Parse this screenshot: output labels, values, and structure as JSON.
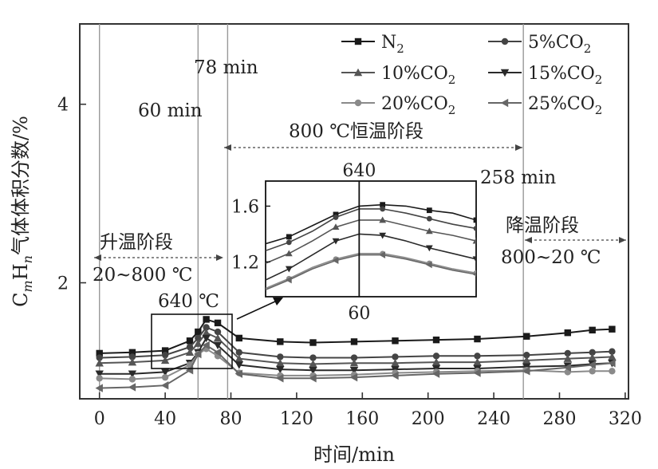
{
  "chart_data": {
    "type": "line",
    "xlabel": "时间/min",
    "ylabel_main": "C",
    "ylabel_sub1": "m",
    "ylabel_mid": "H",
    "ylabel_sub2": "n",
    "ylabel_rest": "气体体积分数/%",
    "xlim": [
      -12,
      322
    ],
    "ylim": [
      0.7,
      4.9
    ],
    "x_ticks": [
      "0",
      "40",
      "80",
      "120",
      "160",
      "200",
      "240",
      "280",
      "320"
    ],
    "y_ticks": [
      "2",
      "4"
    ],
    "x_tick_values": [
      0,
      40,
      80,
      120,
      160,
      200,
      240,
      280,
      320
    ],
    "y_tick_values": [
      2,
      4
    ],
    "vlines": [
      0,
      60,
      78,
      258
    ],
    "legend": [
      {
        "name": "N",
        "sub": "2",
        "color": "#1a1a1a",
        "marker": "square"
      },
      {
        "name": "5%CO",
        "sub": "2",
        "color": "#444444",
        "marker": "circle"
      },
      {
        "name": "10%CO",
        "sub": "2",
        "color": "#555555",
        "marker": "triangle-up"
      },
      {
        "name": "15%CO",
        "sub": "2",
        "color": "#2a2a2a",
        "marker": "triangle-down"
      },
      {
        "name": "20%CO",
        "sub": "2",
        "color": "#8a8a8a",
        "marker": "circle"
      },
      {
        "name": "25%CO",
        "sub": "2",
        "color": "#666666",
        "marker": "triangle-left"
      }
    ],
    "series": [
      {
        "name": "N2",
        "x": [
          0,
          20,
          40,
          55,
          60,
          65,
          72,
          85,
          110,
          130,
          155,
          180,
          205,
          230,
          260,
          285,
          300,
          312
        ],
        "y": [
          1.21,
          1.22,
          1.24,
          1.35,
          1.45,
          1.59,
          1.55,
          1.38,
          1.34,
          1.33,
          1.34,
          1.35,
          1.36,
          1.37,
          1.4,
          1.44,
          1.47,
          1.48
        ]
      },
      {
        "name": "5%CO2",
        "x": [
          0,
          20,
          40,
          55,
          60,
          65,
          72,
          85,
          110,
          130,
          155,
          180,
          205,
          230,
          260,
          285,
          300,
          312
        ],
        "y": [
          1.16,
          1.17,
          1.19,
          1.28,
          1.38,
          1.5,
          1.45,
          1.22,
          1.17,
          1.16,
          1.16,
          1.17,
          1.18,
          1.18,
          1.19,
          1.21,
          1.22,
          1.23
        ]
      },
      {
        "name": "10%CO2",
        "x": [
          0,
          20,
          40,
          55,
          60,
          65,
          72,
          85,
          110,
          130,
          155,
          180,
          205,
          230,
          260,
          285,
          300,
          312
        ],
        "y": [
          1.1,
          1.11,
          1.13,
          1.22,
          1.32,
          1.44,
          1.38,
          1.15,
          1.1,
          1.09,
          1.1,
          1.1,
          1.11,
          1.11,
          1.13,
          1.15,
          1.16,
          1.17
        ]
      },
      {
        "name": "15%CO2",
        "x": [
          0,
          20,
          40,
          55,
          60,
          65,
          72,
          85,
          110,
          130,
          155,
          180,
          205,
          230,
          260,
          285,
          300,
          312
        ],
        "y": [
          0.98,
          0.98,
          1.0,
          1.1,
          1.22,
          1.38,
          1.3,
          1.08,
          1.03,
          1.02,
          1.02,
          1.03,
          1.04,
          1.04,
          1.06,
          1.07,
          1.09,
          1.1
        ]
      },
      {
        "name": "20%CO2",
        "x": [
          0,
          20,
          40,
          55,
          60,
          65,
          72,
          85,
          110,
          130,
          155,
          180,
          205,
          230,
          260,
          285,
          300,
          312
        ],
        "y": [
          0.93,
          0.92,
          0.94,
          1.08,
          1.2,
          1.26,
          1.18,
          0.99,
          0.96,
          0.96,
          0.97,
          0.99,
          1.0,
          1.01,
          1.02,
          1.0,
          1.01,
          1.01
        ]
      },
      {
        "name": "25%CO2",
        "x": [
          0,
          20,
          40,
          55,
          60,
          65,
          72,
          85,
          110,
          130,
          155,
          180,
          205,
          230,
          260,
          285,
          300,
          312
        ],
        "y": [
          0.82,
          0.83,
          0.85,
          1.02,
          1.2,
          1.3,
          1.22,
          0.98,
          0.93,
          0.93,
          0.94,
          0.96,
          0.98,
          0.99,
          1.01,
          1.05,
          1.08,
          1.1
        ]
      }
    ],
    "inset": {
      "yticks": [
        "1.2",
        "1.6"
      ],
      "ytick_values": [
        1.2,
        1.6
      ],
      "ylim": [
        0.95,
        1.78
      ],
      "xlim": [
        44,
        80
      ],
      "marker_x": 60,
      "top_label": "640",
      "bottom_label": "60",
      "series": [
        {
          "x": [
            44,
            48,
            52,
            56,
            60,
            64,
            68,
            72,
            76,
            80
          ],
          "y": [
            1.33,
            1.38,
            1.46,
            1.54,
            1.6,
            1.61,
            1.6,
            1.57,
            1.55,
            1.5
          ]
        },
        {
          "x": [
            44,
            48,
            52,
            56,
            60,
            64,
            68,
            72,
            76,
            80
          ],
          "y": [
            1.28,
            1.34,
            1.42,
            1.52,
            1.58,
            1.58,
            1.55,
            1.51,
            1.47,
            1.44
          ]
        },
        {
          "x": [
            44,
            48,
            52,
            56,
            60,
            64,
            68,
            72,
            76,
            80
          ],
          "y": [
            1.19,
            1.26,
            1.35,
            1.45,
            1.5,
            1.5,
            1.46,
            1.42,
            1.39,
            1.35
          ]
        },
        {
          "x": [
            44,
            48,
            52,
            56,
            60,
            64,
            68,
            72,
            76,
            80
          ],
          "y": [
            1.07,
            1.15,
            1.25,
            1.35,
            1.4,
            1.39,
            1.35,
            1.3,
            1.26,
            1.22
          ]
        },
        {
          "x": [
            44,
            48,
            52,
            56,
            60,
            64,
            68,
            72,
            76,
            80
          ],
          "y": [
            1.01,
            1.08,
            1.16,
            1.22,
            1.26,
            1.26,
            1.23,
            1.19,
            1.15,
            1.12
          ]
        },
        {
          "x": [
            44,
            48,
            52,
            56,
            60,
            64,
            68,
            72,
            76,
            80
          ],
          "y": [
            1.0,
            1.07,
            1.15,
            1.21,
            1.25,
            1.25,
            1.22,
            1.18,
            1.14,
            1.11
          ]
        }
      ]
    },
    "annotations": {
      "t78": "78 min",
      "t60": "60 min",
      "hold": "800 ℃恒温阶段",
      "t258": "258 min",
      "heat": "升温阶段",
      "heat_range": "20~800 ℃",
      "temp640": "640 ℃",
      "cool": "降温阶段",
      "cool_range": "800~20 ℃"
    }
  }
}
